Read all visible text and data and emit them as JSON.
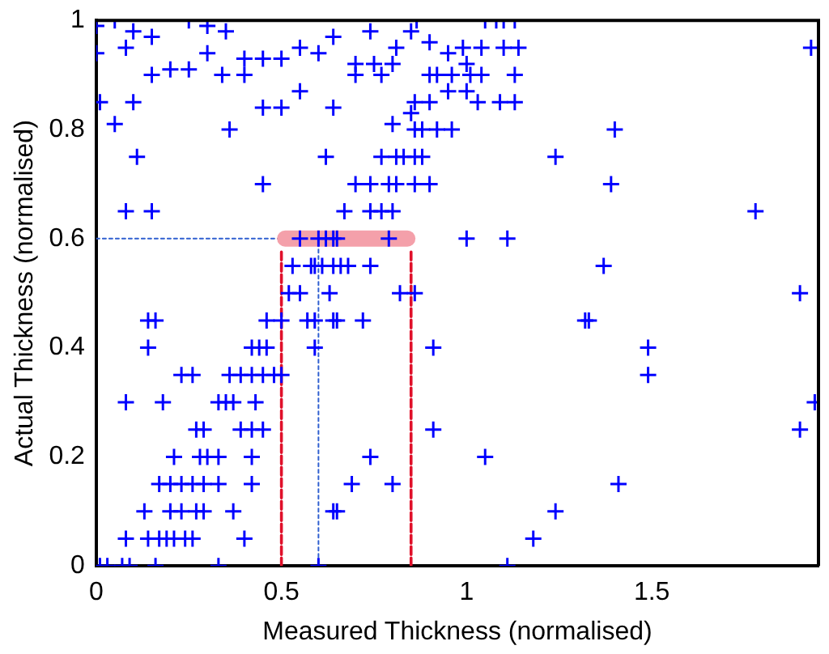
{
  "chart_data": {
    "type": "scatter",
    "xlabel": "Measured Thickness (normalised)",
    "ylabel": "Actual Thickness (normalised)",
    "xlim": [
      0,
      1.95
    ],
    "ylim": [
      0,
      1
    ],
    "xticks": [
      0,
      0.5,
      1,
      1.5
    ],
    "yticks": [
      0,
      0.2,
      0.4,
      0.6,
      0.8,
      1
    ],
    "grid": false,
    "legend": false,
    "marker": "cross",
    "series": [
      {
        "type": "line",
        "color": "#f4a0aa",
        "line_style": "solid",
        "marker": "none",
        "x": [
          0.51,
          0.84
        ],
        "values": [
          0.6,
          0.6
        ]
      },
      {
        "type": "line",
        "color": "#3060d0",
        "line_style": "dotted",
        "marker": "none",
        "x": [
          0,
          0.6,
          0.6
        ],
        "values": [
          0.6,
          0.6,
          0
        ]
      },
      {
        "type": "line",
        "color": "#e0102a",
        "line_style": "dashed",
        "marker": "none",
        "x": [
          0.5,
          0.5
        ],
        "values": [
          0,
          0.58
        ]
      },
      {
        "type": "line",
        "color": "#e0102a",
        "line_style": "dashed",
        "marker": "none",
        "x": [
          0.85,
          0.85
        ],
        "values": [
          0,
          0.58
        ]
      },
      {
        "color": "#0000ff",
        "x": [
          0.0,
          0.05,
          0.1,
          0.15,
          0.0,
          0.08,
          0.25,
          0.3,
          0.35,
          0.3,
          0.4,
          0.45,
          0.5,
          0.55,
          0.6,
          0.64,
          0.15,
          0.2,
          0.25,
          0.34,
          0.4,
          0.01,
          0.1,
          0.45,
          0.5,
          0.55,
          0.64,
          0.05,
          0.36,
          0.11,
          0.62,
          0.45,
          0.08,
          0.15,
          0.55,
          0.6,
          0.62,
          0.64,
          0.65,
          0.79,
          1.0,
          1.11,
          0.53,
          0.58,
          0.59,
          0.61,
          0.64,
          0.66,
          0.68,
          0.74,
          0.865,
          1.05,
          1.08,
          1.1,
          1.13,
          0.74,
          0.85,
          0.81,
          0.9,
          0.99,
          1.04,
          1.1,
          1.14,
          0.95,
          0.7,
          0.75,
          0.8,
          1.0,
          0.7,
          0.77,
          0.9,
          0.92,
          0.96,
          1.01,
          1.04,
          1.13,
          0.95,
          1.0,
          0.86,
          0.9,
          1.03,
          1.09,
          1.13,
          0.8,
          0.85,
          0.86,
          0.88,
          0.92,
          0.96,
          0.77,
          0.81,
          0.83,
          0.86,
          0.88,
          1.24,
          0.7,
          0.74,
          0.79,
          0.81,
          0.86,
          0.9,
          0.67,
          0.74,
          0.77,
          0.8,
          0.82,
          0.86,
          1.93,
          1.4,
          1.39,
          1.78,
          1.37,
          1.9,
          0.14,
          0.16,
          0.46,
          0.5,
          0.57,
          0.59,
          0.64,
          0.14,
          0.42,
          0.44,
          0.46,
          0.59,
          0.23,
          0.26,
          0.36,
          0.39,
          0.42,
          0.45,
          0.48,
          0.5,
          0.08,
          0.18,
          0.33,
          0.35,
          0.37,
          0.43,
          0.27,
          0.29,
          0.39,
          0.42,
          0.45,
          0.21,
          0.28,
          0.3,
          0.33,
          0.42,
          0.17,
          0.2,
          0.23,
          0.26,
          0.29,
          0.33,
          0.42,
          0.13,
          0.2,
          0.23,
          0.27,
          0.29,
          0.37,
          0.64,
          0.08,
          0.14,
          0.17,
          0.19,
          0.21,
          0.24,
          0.26,
          0.4,
          0.01,
          0.03,
          0.07,
          0.09,
          0.16,
          0.33,
          0.6,
          0.52,
          0.55,
          0.63,
          0.65,
          0.72,
          1.32,
          0.91,
          0.91,
          0.74,
          1.05,
          0.69,
          0.8,
          0.65,
          1.24,
          1.18,
          1.11,
          1.33,
          1.49,
          1.49,
          1.94,
          1.9,
          1.41
        ],
        "values": [
          0.99,
          1.0,
          0.98,
          0.97,
          0.94,
          0.95,
          1.0,
          0.99,
          0.98,
          0.94,
          0.93,
          0.93,
          0.93,
          0.95,
          0.94,
          0.97,
          0.9,
          0.91,
          0.91,
          0.9,
          0.9,
          0.85,
          0.85,
          0.84,
          0.84,
          0.87,
          0.84,
          0.81,
          0.8,
          0.75,
          0.75,
          0.7,
          0.65,
          0.65,
          0.6,
          0.6,
          0.6,
          0.6,
          0.6,
          0.6,
          0.6,
          0.6,
          0.55,
          0.55,
          0.55,
          0.55,
          0.55,
          0.55,
          0.55,
          0.55,
          1.0,
          1.0,
          1.0,
          1.0,
          1.0,
          0.98,
          0.98,
          0.95,
          0.96,
          0.95,
          0.95,
          0.95,
          0.95,
          0.94,
          0.92,
          0.92,
          0.92,
          0.92,
          0.9,
          0.9,
          0.9,
          0.9,
          0.9,
          0.9,
          0.9,
          0.9,
          0.87,
          0.87,
          0.85,
          0.85,
          0.85,
          0.85,
          0.85,
          0.81,
          0.83,
          0.8,
          0.8,
          0.8,
          0.8,
          0.75,
          0.75,
          0.75,
          0.75,
          0.75,
          0.75,
          0.7,
          0.7,
          0.7,
          0.7,
          0.7,
          0.7,
          0.65,
          0.65,
          0.65,
          0.65,
          0.5,
          0.5,
          0.95,
          0.8,
          0.7,
          0.65,
          0.55,
          0.5,
          0.45,
          0.45,
          0.45,
          0.45,
          0.45,
          0.45,
          0.45,
          0.4,
          0.4,
          0.4,
          0.4,
          0.4,
          0.35,
          0.35,
          0.35,
          0.35,
          0.35,
          0.35,
          0.35,
          0.35,
          0.3,
          0.3,
          0.3,
          0.3,
          0.3,
          0.3,
          0.25,
          0.25,
          0.25,
          0.25,
          0.25,
          0.2,
          0.2,
          0.2,
          0.2,
          0.2,
          0.15,
          0.15,
          0.15,
          0.15,
          0.15,
          0.15,
          0.15,
          0.1,
          0.1,
          0.1,
          0.1,
          0.1,
          0.1,
          0.1,
          0.05,
          0.05,
          0.05,
          0.05,
          0.05,
          0.05,
          0.05,
          0.05,
          0,
          0,
          0,
          0,
          0,
          0,
          0,
          0.5,
          0.5,
          0.5,
          0.45,
          0.45,
          0.45,
          0.4,
          0.25,
          0.2,
          0.2,
          0.15,
          0.15,
          0.1,
          0.1,
          0.05,
          0,
          0.45,
          0.4,
          0.35,
          0.3,
          0.25,
          0.15
        ]
      }
    ]
  }
}
